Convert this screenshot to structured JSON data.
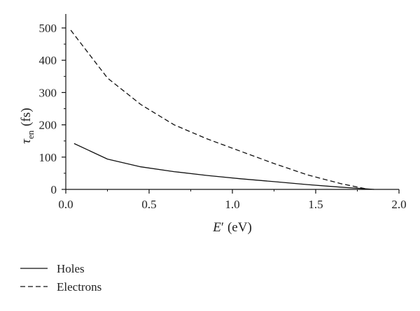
{
  "chart_data": {
    "type": "line",
    "xlabel": {
      "symbol": "E",
      "prime": "′",
      "unit": "(eV)"
    },
    "ylabel": {
      "symbol": "τ",
      "subscript": "en",
      "unit": "(fs)"
    },
    "xlim": [
      0,
      2.0
    ],
    "ylim": [
      0,
      550
    ],
    "x_ticks": [
      "0.0",
      "0.5",
      "1.0",
      "1.5",
      "2.0"
    ],
    "y_ticks": [
      "0",
      "100",
      "200",
      "300",
      "400",
      "500"
    ],
    "grid": false,
    "legend_position": "bottom-left",
    "series": [
      {
        "name": "Holes",
        "style": "solid",
        "x": [
          0.05,
          0.25,
          0.45,
          0.65,
          0.85,
          1.05,
          1.25,
          1.45,
          1.65,
          1.8,
          1.85
        ],
        "y": [
          142,
          94,
          70,
          55,
          43,
          33,
          24,
          15,
          7,
          2,
          0
        ]
      },
      {
        "name": "Electrons",
        "style": "dashed",
        "x": [
          0.03,
          0.25,
          0.45,
          0.65,
          0.85,
          1.05,
          1.25,
          1.45,
          1.65,
          1.8
        ],
        "y": [
          493,
          345,
          263,
          200,
          156,
          118,
          80,
          45,
          18,
          2
        ]
      }
    ]
  }
}
